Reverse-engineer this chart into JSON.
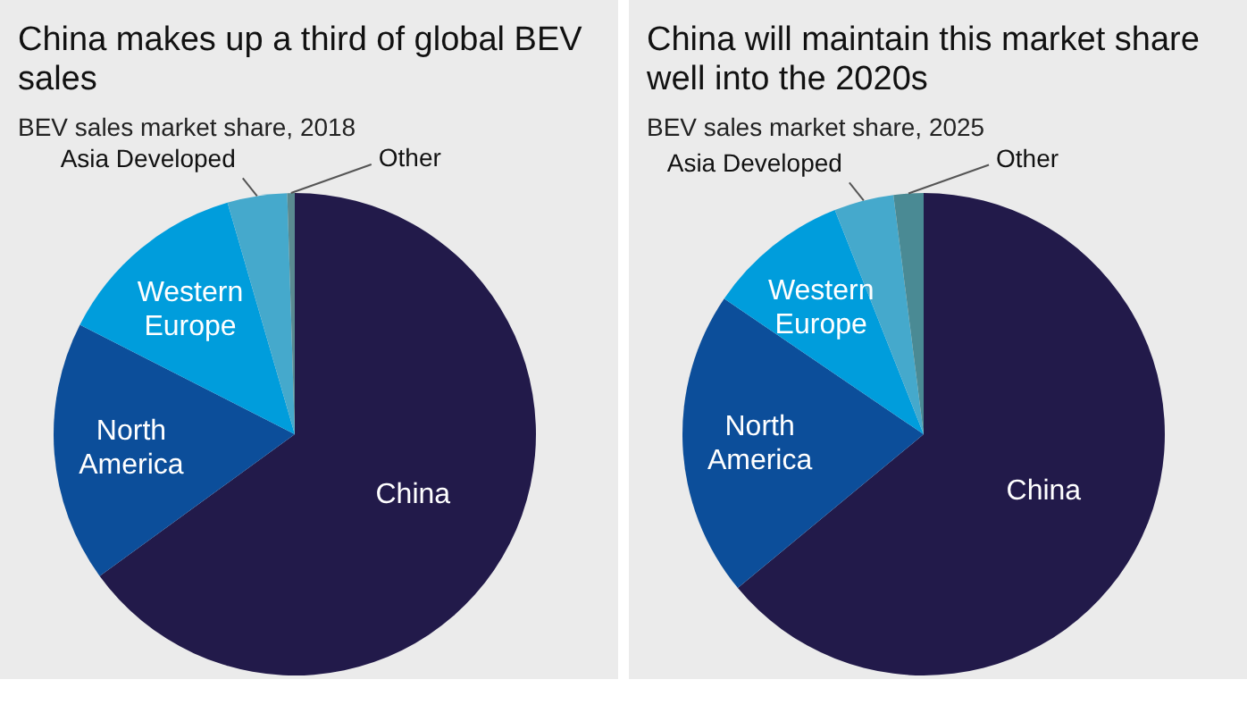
{
  "chart_data": [
    {
      "type": "pie",
      "title": "China makes up a third of global BEV sales",
      "subtitle": "BEV sales market share, 2018",
      "categories": [
        "China",
        "North America",
        "Western Europe",
        "Asia Developed",
        "Other"
      ],
      "values": [
        65,
        17.5,
        13,
        4,
        0.5
      ],
      "colors": [
        "#221a4a",
        "#0c4e9a",
        "#009ddc",
        "#45a9cc",
        "#5a8a90"
      ]
    },
    {
      "type": "pie",
      "title": "China will maintain this market share well into the 2020s",
      "subtitle": "BEV sales market share, 2025",
      "categories": [
        "China",
        "North America",
        "Western Europe",
        "Asia Developed",
        "Other"
      ],
      "values": [
        64,
        20.5,
        9.5,
        4,
        2
      ],
      "colors": [
        "#221a4a",
        "#0c4e9a",
        "#009ddc",
        "#45a9cc",
        "#4a8a94"
      ]
    }
  ]
}
